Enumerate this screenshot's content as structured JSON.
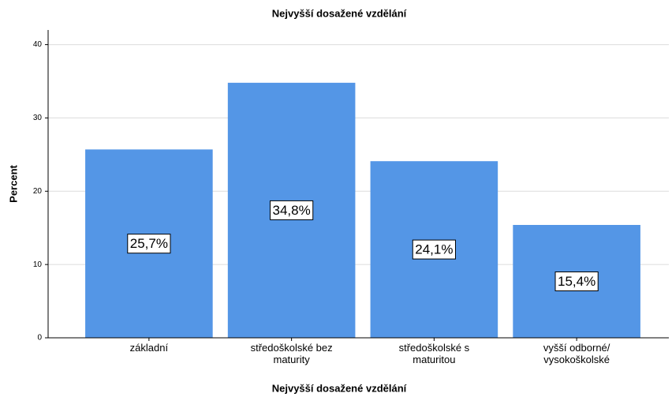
{
  "chart_data": {
    "type": "bar",
    "title": "Nejvyšší dosažené vzdělání",
    "x_label": "Nejvyšší dosažené vzdělání",
    "y_label": "Percent",
    "categories": [
      "základní",
      "středoškolské bez\nmaturity",
      "středoškolské s\nmaturitou",
      "vyšší odborné/\nvysokoškolské"
    ],
    "values": [
      25.7,
      34.8,
      24.1,
      15.4
    ],
    "value_labels": [
      "25,7%",
      "34,8%",
      "24,1%",
      "15,4%"
    ],
    "color": "#5496e6",
    "ylim": [
      0,
      42
    ],
    "yticks": [
      0,
      10,
      20,
      30,
      40
    ],
    "grid": true
  }
}
